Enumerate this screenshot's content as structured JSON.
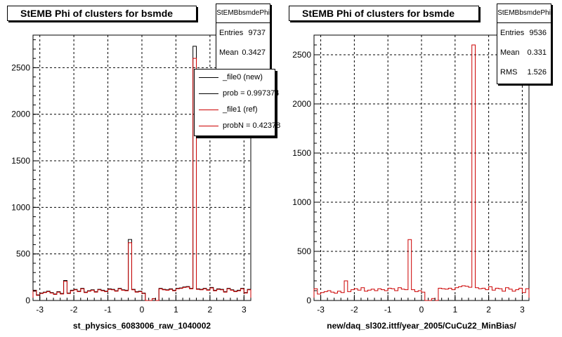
{
  "chart_data": [
    {
      "type": "bar",
      "title": "StEMB Phi of clusters for bsmde",
      "xlabel": "st_physics_6083006_raw_1040002",
      "xlim": [
        -3.2,
        3.2
      ],
      "ylim": [
        0,
        2850
      ],
      "xticks": [
        "-3",
        "-2",
        "-1",
        "0",
        "1",
        "2",
        "3"
      ],
      "xtick_values": [
        -3,
        -2,
        -1,
        0,
        1,
        2,
        3
      ],
      "yticks": [
        "0",
        "500",
        "1000",
        "1500",
        "2000",
        "2500"
      ],
      "ytick_values": [
        0,
        500,
        1000,
        1500,
        2000,
        2500
      ],
      "grid": true,
      "series": [
        {
          "name": "_file0 (new)",
          "color": "#000000",
          "values": [
            110,
            60,
            80,
            90,
            100,
            85,
            70,
            95,
            75,
            215,
            80,
            110,
            120,
            100,
            130,
            90,
            105,
            115,
            95,
            120,
            110,
            100,
            125,
            120,
            105,
            130,
            115,
            110,
            655,
            120,
            95,
            100,
            80,
            0,
            0,
            20,
            0,
            130,
            120,
            115,
            125,
            110,
            130,
            135,
            145,
            150,
            130,
            2730,
            125,
            120,
            130,
            115,
            140,
            110,
            125,
            120,
            95,
            130,
            115,
            100,
            110,
            130,
            85,
            120
          ]
        },
        {
          "name": "_file1 (ref)",
          "color": "#cc0000",
          "values": [
            105,
            55,
            75,
            85,
            95,
            80,
            65,
            90,
            70,
            205,
            75,
            105,
            115,
            95,
            125,
            85,
            100,
            110,
            90,
            115,
            105,
            95,
            120,
            115,
            100,
            125,
            110,
            105,
            620,
            115,
            90,
            95,
            75,
            0,
            0,
            18,
            0,
            125,
            115,
            110,
            120,
            105,
            125,
            130,
            140,
            145,
            125,
            2600,
            120,
            115,
            125,
            110,
            135,
            105,
            120,
            115,
            90,
            125,
            110,
            95,
            105,
            125,
            80,
            115
          ]
        }
      ],
      "stats": {
        "name": "StEMBbsmdePhi",
        "entries_label": "Entries",
        "entries": "9737",
        "mean_label": "Mean",
        "mean": "0.3427"
      },
      "legend": [
        "_file0 (new)",
        "prob = 0.997374",
        "_file1 (ref)",
        "probN = 0.42378"
      ]
    },
    {
      "type": "bar",
      "title": "StEMB Phi of clusters for bsmde",
      "xlabel": "new/daq_sl302.ittf/year_2005/CuCu22_MinBias/",
      "xlim": [
        -3.2,
        3.2
      ],
      "ylim": [
        0,
        2700
      ],
      "xticks": [
        "-3",
        "-2",
        "-1",
        "0",
        "1",
        "2",
        "3"
      ],
      "xtick_values": [
        -3,
        -2,
        -1,
        0,
        1,
        2,
        3
      ],
      "yticks": [
        "0",
        "500",
        "1000",
        "1500",
        "2000",
        "2500"
      ],
      "ytick_values": [
        0,
        500,
        1000,
        1500,
        2000,
        2500
      ],
      "grid": true,
      "series": [
        {
          "color": "#cc0000",
          "values": [
            120,
            65,
            80,
            90,
            100,
            85,
            75,
            95,
            80,
            200,
            90,
            110,
            120,
            105,
            130,
            95,
            105,
            115,
            100,
            120,
            110,
            100,
            125,
            120,
            100,
            130,
            115,
            110,
            620,
            110,
            90,
            100,
            85,
            0,
            0,
            20,
            0,
            125,
            120,
            115,
            125,
            110,
            130,
            140,
            150,
            145,
            135,
            2600,
            130,
            120,
            125,
            110,
            140,
            105,
            125,
            120,
            95,
            130,
            115,
            95,
            110,
            125,
            80,
            120
          ]
        }
      ],
      "stats": {
        "name": "StEMBbsmdePhi",
        "entries_label": "Entries",
        "entries": "9536",
        "mean_label": "Mean",
        "mean": "0.331",
        "rms_label": "RMS",
        "rms": "1.526"
      }
    }
  ]
}
